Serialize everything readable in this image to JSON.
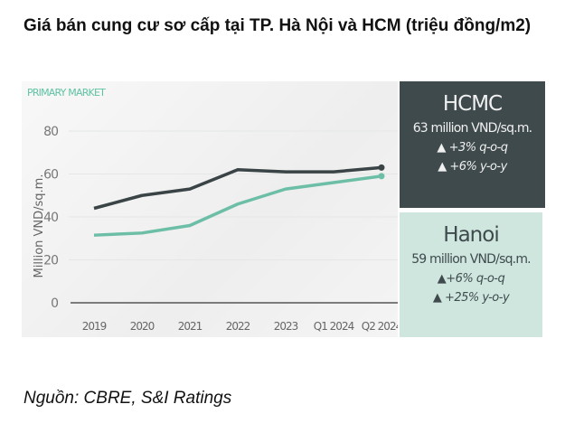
{
  "title": "Giá bán cung cư sơ cấp tại TP. Hà Nội và HCM (triệu đồng/m2)",
  "source": "Nguồn: CBRE, S&I Ratings",
  "chart_data": {
    "type": "line",
    "title": "PRIMARY MARKET",
    "ylabel": "Million VND/sq.m.",
    "xlabel": "",
    "ylim": [
      0,
      80
    ],
    "yticks": [
      0,
      20,
      40,
      60,
      80
    ],
    "categories": [
      "2019",
      "2020",
      "2021",
      "2022",
      "2023",
      "Q1 2024",
      "Q2 2024"
    ],
    "series": [
      {
        "name": "HCMC",
        "color": "#3a4446",
        "values": [
          44,
          50,
          53,
          62,
          61,
          61,
          63
        ]
      },
      {
        "name": "Hanoi",
        "color": "#6cbfa6",
        "values": [
          31.5,
          32.5,
          36,
          46,
          53,
          56,
          59
        ]
      }
    ],
    "grid": true
  },
  "hcmc": {
    "city": "HCMC",
    "price": "63 million VND/sq.m.",
    "qoq": "+3% q-o-q",
    "yoy": "+6% y-o-y"
  },
  "hanoi": {
    "city": "Hanoi",
    "price": "59 million VND/sq.m.",
    "qoq": "+6% q-o-q",
    "yoy": "+25% y-o-y"
  },
  "icons": {
    "up": "▲"
  }
}
